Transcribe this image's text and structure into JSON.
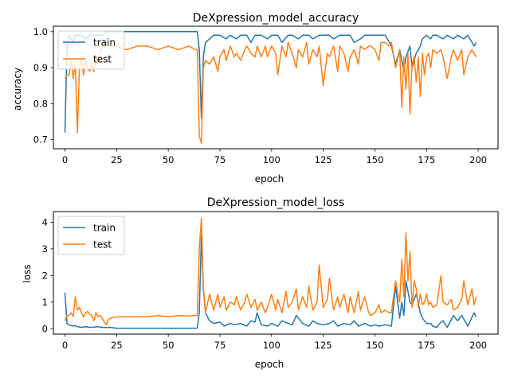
{
  "colors": {
    "train": "#1f77b4",
    "test": "#ff7f0e"
  },
  "chart_data": [
    {
      "type": "line",
      "title": "DeXpression_model_accuracy",
      "xlabel": "epoch",
      "ylabel": "accuracy",
      "xlim": [
        -5.6,
        209.6
      ],
      "ylim": [
        0.675,
        1.015
      ],
      "xticks": [
        0,
        25,
        50,
        75,
        100,
        125,
        150,
        175,
        200
      ],
      "yticks": [
        0.7,
        0.8,
        0.9,
        1.0
      ],
      "ytick_labels": [
        "0.7",
        "0.8",
        "0.9",
        "1.0"
      ],
      "legend": "upper-left",
      "series": [
        {
          "name": "train",
          "x": [
            0,
            1,
            2,
            3,
            4,
            5,
            6,
            8,
            10,
            12,
            15,
            18,
            20,
            25,
            30,
            35,
            40,
            45,
            50,
            55,
            60,
            63,
            64,
            65,
            66,
            67,
            68,
            70,
            72,
            75,
            78,
            80,
            83,
            85,
            88,
            90,
            92,
            95,
            98,
            100,
            103,
            105,
            108,
            110,
            113,
            115,
            118,
            120,
            123,
            125,
            128,
            130,
            133,
            135,
            138,
            140,
            143,
            145,
            148,
            150,
            153,
            155,
            158,
            160,
            162,
            164,
            165,
            167,
            168,
            170,
            172,
            173,
            175,
            177,
            178,
            180,
            183,
            185,
            188,
            190,
            193,
            195,
            198,
            199
          ],
          "y": [
            0.72,
            0.96,
            0.99,
            0.98,
            0.97,
            0.99,
            0.99,
            0.99,
            0.98,
            0.99,
            0.99,
            0.99,
            1.0,
            1.0,
            1.0,
            1.0,
            1.0,
            1.0,
            1.0,
            1.0,
            1.0,
            1.0,
            1.0,
            0.95,
            0.76,
            0.93,
            0.97,
            0.98,
            0.99,
            0.99,
            0.98,
            0.99,
            0.98,
            0.99,
            0.99,
            0.97,
            0.99,
            0.99,
            0.98,
            0.99,
            0.99,
            0.97,
            0.99,
            0.99,
            0.98,
            0.99,
            0.99,
            0.98,
            0.99,
            0.99,
            0.99,
            0.98,
            0.99,
            0.99,
            0.99,
            0.97,
            0.98,
            0.99,
            0.99,
            0.99,
            0.99,
            0.99,
            0.96,
            0.91,
            0.95,
            0.89,
            0.93,
            0.96,
            0.9,
            0.94,
            0.96,
            0.98,
            0.99,
            0.98,
            0.99,
            0.99,
            0.98,
            0.99,
            0.98,
            0.99,
            0.98,
            0.99,
            0.96,
            0.97
          ]
        },
        {
          "name": "test",
          "x": [
            0,
            1,
            2,
            3,
            4,
            5,
            6,
            7,
            8,
            9,
            10,
            11,
            12,
            13,
            14,
            15,
            16,
            17,
            18,
            19,
            20,
            21,
            22,
            25,
            30,
            35,
            40,
            45,
            50,
            55,
            60,
            63,
            64,
            65,
            66,
            67,
            68,
            70,
            72,
            74,
            75,
            77,
            78,
            80,
            82,
            83,
            85,
            87,
            88,
            90,
            92,
            93,
            95,
            97,
            98,
            100,
            102,
            103,
            105,
            107,
            108,
            110,
            112,
            113,
            115,
            117,
            118,
            120,
            122,
            123,
            125,
            127,
            128,
            130,
            132,
            133,
            135,
            137,
            138,
            140,
            142,
            143,
            145,
            147,
            148,
            150,
            152,
            153,
            155,
            157,
            158,
            160,
            162,
            163,
            164,
            165,
            166,
            167,
            168,
            169,
            170,
            171,
            172,
            173,
            174,
            175,
            176,
            177,
            178,
            180,
            182,
            183,
            185,
            187,
            188,
            190,
            192,
            193,
            195,
            197,
            198,
            199
          ],
          "y": [
            0.87,
            0.88,
            0.88,
            0.92,
            0.87,
            0.91,
            0.72,
            0.9,
            0.92,
            0.88,
            0.92,
            0.9,
            0.89,
            0.91,
            0.89,
            0.93,
            0.91,
            0.94,
            0.96,
            0.96,
            0.96,
            0.96,
            0.96,
            0.96,
            0.95,
            0.96,
            0.96,
            0.95,
            0.96,
            0.95,
            0.96,
            0.95,
            0.95,
            0.71,
            0.69,
            0.9,
            0.92,
            0.91,
            0.93,
            0.89,
            0.93,
            0.95,
            0.92,
            0.96,
            0.93,
            0.94,
            0.92,
            0.95,
            0.96,
            0.94,
            0.93,
            0.96,
            0.93,
            0.96,
            0.93,
            0.96,
            0.94,
            0.88,
            0.96,
            0.93,
            0.97,
            0.94,
            0.9,
            0.95,
            0.93,
            0.97,
            0.91,
            0.95,
            0.93,
            0.96,
            0.85,
            0.94,
            0.93,
            0.96,
            0.89,
            0.96,
            0.94,
            0.89,
            0.93,
            0.95,
            0.91,
            0.96,
            0.95,
            0.96,
            0.96,
            0.95,
            0.92,
            0.97,
            0.97,
            0.96,
            0.97,
            0.9,
            0.95,
            0.79,
            0.93,
            0.84,
            0.94,
            0.77,
            0.91,
            0.93,
            0.86,
            0.93,
            0.82,
            0.94,
            0.88,
            0.93,
            0.94,
            0.9,
            0.95,
            0.94,
            0.95,
            0.93,
            0.87,
            0.93,
            0.95,
            0.92,
            0.95,
            0.88,
            0.93,
            0.95,
            0.94,
            0.93
          ]
        }
      ]
    },
    {
      "type": "line",
      "title": "DeXpression_model_loss",
      "xlabel": "epoch",
      "ylabel": "loss",
      "xlim": [
        -5.6,
        209.6
      ],
      "ylim": [
        -0.2,
        4.4
      ],
      "xticks": [
        0,
        25,
        50,
        75,
        100,
        125,
        150,
        175,
        200
      ],
      "yticks": [
        0,
        1,
        2,
        3,
        4
      ],
      "ytick_labels": [
        "0",
        "1",
        "2",
        "3",
        "4"
      ],
      "legend": "upper-left",
      "series": [
        {
          "name": "train",
          "x": [
            0,
            1,
            2,
            3,
            4,
            5,
            6,
            8,
            10,
            12,
            14,
            16,
            18,
            20,
            22,
            25,
            30,
            35,
            40,
            45,
            50,
            55,
            60,
            63,
            64,
            65,
            66,
            67,
            68,
            70,
            72,
            75,
            77,
            80,
            82,
            85,
            88,
            90,
            92,
            93,
            95,
            98,
            100,
            103,
            105,
            108,
            110,
            112,
            115,
            118,
            120,
            122,
            125,
            128,
            130,
            132,
            135,
            138,
            140,
            142,
            145,
            148,
            150,
            152,
            155,
            158,
            160,
            162,
            163,
            164,
            165,
            167,
            168,
            170,
            172,
            173,
            175,
            177,
            178,
            180,
            182,
            183,
            185,
            188,
            190,
            192,
            195,
            198,
            199
          ],
          "y": [
            1.35,
            0.2,
            0.15,
            0.12,
            0.1,
            0.12,
            0.08,
            0.05,
            0.08,
            0.05,
            0.06,
            0.08,
            0.05,
            0.05,
            0.05,
            0.02,
            0.02,
            0.02,
            0.02,
            0.02,
            0.02,
            0.02,
            0.02,
            0.02,
            0.02,
            0.6,
            3.5,
            1.5,
            0.6,
            0.3,
            0.2,
            0.25,
            0.1,
            0.2,
            0.15,
            0.2,
            0.1,
            0.3,
            0.25,
            0.6,
            0.15,
            0.1,
            0.2,
            0.1,
            0.3,
            0.2,
            0.15,
            0.5,
            0.2,
            0.1,
            0.3,
            0.2,
            0.15,
            0.2,
            0.3,
            0.1,
            0.2,
            0.15,
            0.3,
            0.1,
            0.2,
            0.1,
            0.15,
            0.1,
            0.15,
            0.1,
            1.6,
            0.4,
            1.0,
            0.5,
            1.8,
            1.0,
            0.9,
            1.3,
            0.6,
            0.4,
            0.2,
            0.2,
            0.1,
            0.05,
            0.25,
            0.3,
            0.05,
            0.5,
            0.3,
            0.5,
            0.1,
            0.6,
            0.45
          ]
        },
        {
          "name": "test",
          "x": [
            0,
            1,
            2,
            3,
            4,
            5,
            6,
            7,
            8,
            9,
            10,
            11,
            12,
            13,
            14,
            15,
            16,
            17,
            18,
            19,
            20,
            21,
            22,
            25,
            30,
            35,
            40,
            45,
            50,
            55,
            60,
            63,
            64,
            65,
            66,
            67,
            68,
            70,
            72,
            74,
            75,
            77,
            78,
            80,
            82,
            83,
            85,
            87,
            88,
            90,
            92,
            93,
            95,
            97,
            98,
            100,
            102,
            103,
            105,
            107,
            108,
            110,
            112,
            113,
            115,
            117,
            118,
            120,
            122,
            123,
            125,
            127,
            128,
            130,
            132,
            133,
            135,
            137,
            138,
            140,
            142,
            143,
            145,
            147,
            148,
            150,
            152,
            153,
            155,
            157,
            158,
            160,
            162,
            163,
            164,
            165,
            166,
            167,
            168,
            169,
            170,
            171,
            172,
            173,
            174,
            175,
            176,
            177,
            178,
            180,
            182,
            183,
            185,
            187,
            188,
            190,
            192,
            193,
            195,
            197,
            198,
            199
          ],
          "y": [
            0.3,
            0.5,
            0.5,
            0.6,
            0.45,
            1.2,
            0.7,
            0.8,
            0.6,
            0.45,
            0.6,
            0.65,
            0.55,
            0.5,
            0.3,
            0.6,
            0.45,
            0.5,
            0.4,
            0.25,
            0.15,
            0.35,
            0.4,
            0.45,
            0.45,
            0.45,
            0.45,
            0.5,
            0.45,
            0.5,
            0.48,
            0.5,
            0.5,
            3.0,
            4.15,
            1.6,
            0.6,
            1.3,
            0.7,
            1.3,
            0.8,
            1.2,
            0.7,
            1.0,
            0.9,
            1.2,
            0.7,
            1.0,
            1.3,
            0.8,
            1.1,
            0.7,
            1.0,
            0.6,
            0.8,
            1.3,
            0.7,
            1.1,
            0.6,
            1.4,
            0.8,
            1.0,
            1.5,
            0.7,
            1.2,
            0.8,
            1.6,
            0.7,
            1.0,
            2.4,
            0.8,
            1.1,
            1.9,
            0.7,
            1.2,
            0.8,
            1.3,
            0.6,
            1.2,
            0.6,
            1.4,
            0.7,
            1.2,
            0.6,
            0.5,
            0.6,
            0.9,
            0.6,
            0.7,
            0.6,
            0.6,
            1.8,
            1.0,
            2.6,
            1.2,
            3.6,
            1.8,
            2.9,
            0.8,
            1.8,
            1.5,
            0.8,
            1.3,
            0.9,
            1.0,
            1.3,
            0.9,
            1.0,
            0.8,
            0.9,
            2.0,
            1.0,
            0.9,
            1.1,
            0.7,
            0.8,
            1.1,
            1.8,
            0.9,
            1.5,
            0.9,
            1.2
          ]
        }
      ]
    }
  ]
}
